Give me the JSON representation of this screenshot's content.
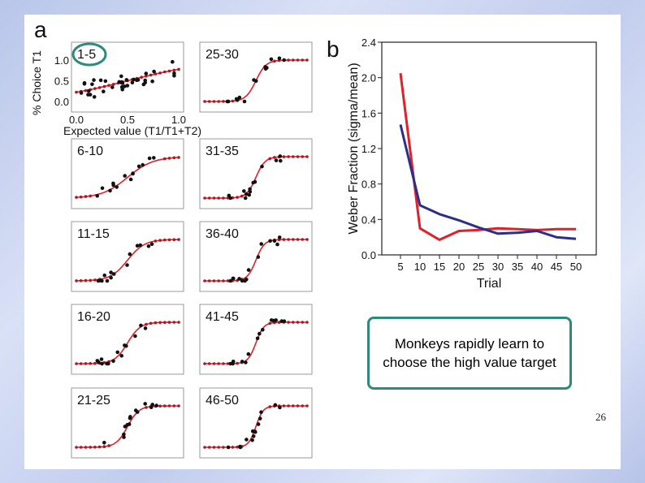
{
  "slide": {
    "callout_text": "Monkeys rapidly learn to choose the high value target",
    "page_number": "26"
  },
  "panel_a": {
    "panel_label": "a",
    "ylabel": "% Choice T1",
    "xlabel": "Expected value (T1/T1+T2)",
    "y_ticks": [
      "1.0",
      "0.5",
      "0.0"
    ],
    "x_ticks": [
      "0.0",
      "0.5",
      "1.0"
    ],
    "fit_color": "#e0202a",
    "point_color": "#111111",
    "highlight_color": "#2e8a7f"
  },
  "panel_b": {
    "panel_label": "b"
  },
  "chart_data": [
    {
      "type": "scatter",
      "title": "",
      "xlabel": "Expected value (T1/T1+T2)",
      "ylabel": "% Choice T1",
      "xlim": [
        0,
        1
      ],
      "ylim": [
        0,
        1
      ],
      "grid": false,
      "panels": [
        {
          "label": "1-5",
          "slope": 2.5
        },
        {
          "label": "6-10",
          "slope": 8
        },
        {
          "label": "11-15",
          "slope": 12
        },
        {
          "label": "16-20",
          "slope": 16
        },
        {
          "label": "21-25",
          "slope": 18
        },
        {
          "label": "25-30",
          "slope": 20
        },
        {
          "label": "31-35",
          "slope": 22
        },
        {
          "label": "36-40",
          "slope": 24
        },
        {
          "label": "41-45",
          "slope": 26
        },
        {
          "label": "46-50",
          "slope": 28
        }
      ]
    },
    {
      "type": "line",
      "title": "",
      "xlabel": "Trial",
      "ylabel": "Weber Fraction (sigma/mean)",
      "x": [
        5,
        10,
        15,
        20,
        25,
        30,
        35,
        40,
        45,
        50
      ],
      "x_ticks": [
        "5",
        "10",
        "15",
        "20",
        "25",
        "30",
        "35",
        "40",
        "45",
        "50"
      ],
      "y_ticks": [
        "0.0",
        "0.4",
        "0.8",
        "1.2",
        "1.6",
        "2.0",
        "2.4"
      ],
      "ylim": [
        0,
        2.4
      ],
      "grid": false,
      "series": [
        {
          "color": "#e0202a",
          "values": [
            2.05,
            0.3,
            0.17,
            0.27,
            0.28,
            0.3,
            0.29,
            0.28,
            0.29,
            0.29
          ]
        },
        {
          "color": "#2b2f8a",
          "values": [
            1.47,
            0.56,
            0.46,
            0.39,
            0.31,
            0.24,
            0.25,
            0.27,
            0.2,
            0.18
          ]
        }
      ]
    }
  ]
}
